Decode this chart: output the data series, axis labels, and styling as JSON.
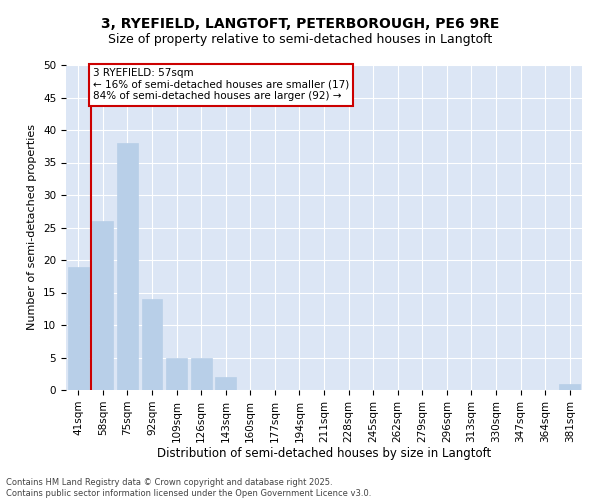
{
  "title1": "3, RYEFIELD, LANGTOFT, PETERBOROUGH, PE6 9RE",
  "title2": "Size of property relative to semi-detached houses in Langtoft",
  "xlabel": "Distribution of semi-detached houses by size in Langtoft",
  "ylabel": "Number of semi-detached properties",
  "categories": [
    "41sqm",
    "58sqm",
    "75sqm",
    "92sqm",
    "109sqm",
    "126sqm",
    "143sqm",
    "160sqm",
    "177sqm",
    "194sqm",
    "211sqm",
    "228sqm",
    "245sqm",
    "262sqm",
    "279sqm",
    "296sqm",
    "313sqm",
    "330sqm",
    "347sqm",
    "364sqm",
    "381sqm"
  ],
  "values": [
    19,
    26,
    38,
    14,
    5,
    5,
    2,
    0,
    0,
    0,
    0,
    0,
    0,
    0,
    0,
    0,
    0,
    0,
    0,
    0,
    1
  ],
  "bar_color": "#b8cfe8",
  "annotation_text": "3 RYEFIELD: 57sqm\n← 16% of semi-detached houses are smaller (17)\n84% of semi-detached houses are larger (92) →",
  "annotation_box_color": "white",
  "annotation_box_edge": "#cc0000",
  "vline_color": "#cc0000",
  "background_color": "#dce6f5",
  "grid_color": "white",
  "ylim": [
    0,
    50
  ],
  "yticks": [
    0,
    5,
    10,
    15,
    20,
    25,
    30,
    35,
    40,
    45,
    50
  ],
  "footer": "Contains HM Land Registry data © Crown copyright and database right 2025.\nContains public sector information licensed under the Open Government Licence v3.0.",
  "title_fontsize": 10,
  "subtitle_fontsize": 9,
  "tick_fontsize": 7.5,
  "ylabel_fontsize": 8,
  "xlabel_fontsize": 8.5,
  "annotation_fontsize": 7.5,
  "footer_fontsize": 6
}
